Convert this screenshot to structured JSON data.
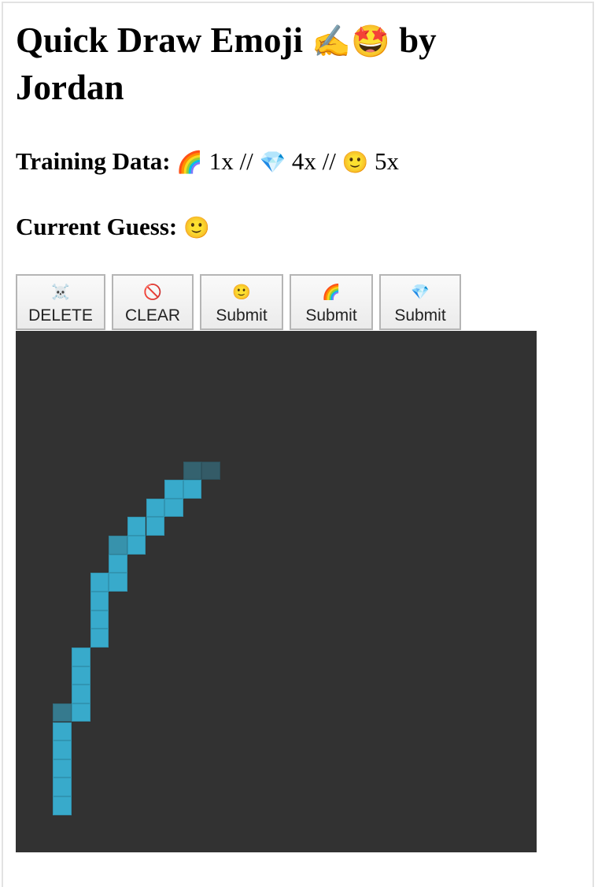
{
  "header": {
    "title_text": "Quick Draw Emoji",
    "title_emoji": "✍️🤩",
    "title_by": "by",
    "title_author": "Jordan"
  },
  "training": {
    "label": "Training Data:",
    "items": [
      {
        "emoji": "🌈",
        "count": "1x"
      },
      {
        "emoji": "💎",
        "count": "4x"
      },
      {
        "emoji": "🙂",
        "count": "5x"
      }
    ],
    "separator": "//"
  },
  "guess": {
    "label": "Current Guess:",
    "emoji": "🙂"
  },
  "buttons": [
    {
      "icon": "☠️",
      "label": "DELETE"
    },
    {
      "icon": "🚫",
      "label": "CLEAR"
    },
    {
      "icon": "🙂",
      "label": "Submit"
    },
    {
      "icon": "🌈",
      "label": "Submit"
    },
    {
      "icon": "💎",
      "label": "Submit"
    }
  ],
  "canvas": {
    "background": "#323232",
    "pixel_color": "#38aacb",
    "grid_size": 28,
    "pixels": [
      {
        "col": 9,
        "row": 7,
        "alpha": 0.4
      },
      {
        "col": 10,
        "row": 7,
        "alpha": 0.35
      },
      {
        "col": 8,
        "row": 8,
        "alpha": 1
      },
      {
        "col": 9,
        "row": 8,
        "alpha": 1
      },
      {
        "col": 7,
        "row": 9,
        "alpha": 1
      },
      {
        "col": 8,
        "row": 9,
        "alpha": 1
      },
      {
        "col": 6,
        "row": 10,
        "alpha": 1
      },
      {
        "col": 7,
        "row": 10,
        "alpha": 1
      },
      {
        "col": 5,
        "row": 11,
        "alpha": 0.8
      },
      {
        "col": 6,
        "row": 11,
        "alpha": 1
      },
      {
        "col": 5,
        "row": 12,
        "alpha": 1
      },
      {
        "col": 4,
        "row": 13,
        "alpha": 1
      },
      {
        "col": 5,
        "row": 13,
        "alpha": 1
      },
      {
        "col": 4,
        "row": 14,
        "alpha": 1
      },
      {
        "col": 4,
        "row": 15,
        "alpha": 1
      },
      {
        "col": 4,
        "row": 16,
        "alpha": 1
      },
      {
        "col": 3,
        "row": 17,
        "alpha": 1
      },
      {
        "col": 3,
        "row": 18,
        "alpha": 1
      },
      {
        "col": 3,
        "row": 19,
        "alpha": 1
      },
      {
        "col": 2,
        "row": 20,
        "alpha": 0.6
      },
      {
        "col": 3,
        "row": 20,
        "alpha": 1
      },
      {
        "col": 2,
        "row": 21,
        "alpha": 1
      },
      {
        "col": 2,
        "row": 22,
        "alpha": 1
      },
      {
        "col": 2,
        "row": 23,
        "alpha": 1
      },
      {
        "col": 2,
        "row": 24,
        "alpha": 1
      },
      {
        "col": 2,
        "row": 25,
        "alpha": 1
      }
    ]
  }
}
